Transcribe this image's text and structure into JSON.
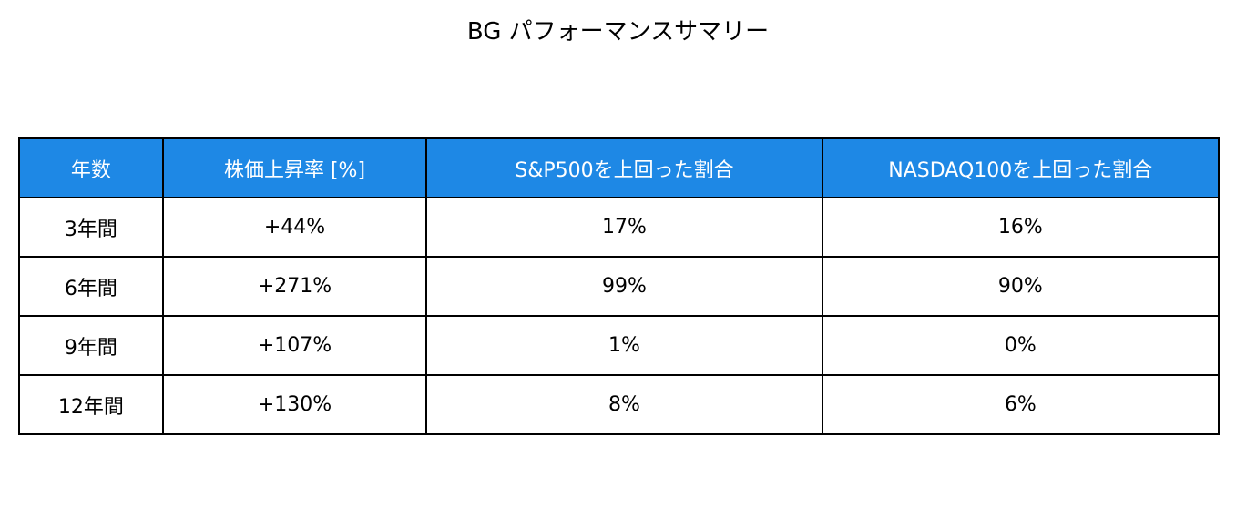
{
  "title": "BG パフォーマンスサマリー",
  "table": {
    "header": [
      "年数",
      "株価上昇率 [%]",
      "S&P500を上回った割合",
      "NASDAQ100を上回った割合"
    ],
    "rows": [
      [
        "3年間",
        "+44%",
        "17%",
        "16%"
      ],
      [
        "6年間",
        "+271%",
        "99%",
        "90%"
      ],
      [
        "9年間",
        "+107%",
        "1%",
        "0%"
      ],
      [
        "12年間",
        "+130%",
        "8%",
        "6%"
      ]
    ]
  }
}
